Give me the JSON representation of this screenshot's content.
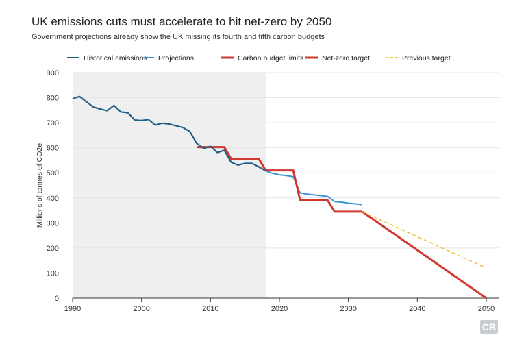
{
  "chart_data": {
    "type": "line",
    "title": "UK emissions cuts must accelerate to hit net-zero by 2050",
    "subtitle": "Government projections already show the UK missing its fourth and fifth carbon budgets",
    "ylabel": "Millions of tonnes of CO2e",
    "xlabel": "",
    "xlim": [
      1990,
      2050
    ],
    "ylim": [
      0,
      900
    ],
    "xticks": [
      1990,
      2000,
      2010,
      2020,
      2030,
      2040,
      2050
    ],
    "yticks": [
      0,
      100,
      200,
      300,
      400,
      500,
      600,
      700,
      800,
      900
    ],
    "shaded_region": [
      1990,
      2018
    ],
    "legend_position": "top",
    "series": [
      {
        "name": "Historical emissions",
        "color": "#1f5f86",
        "style": "solid",
        "x": [
          1990,
          1991,
          1992,
          1993,
          1994,
          1995,
          1996,
          1997,
          1998,
          1999,
          2000,
          2001,
          2002,
          2003,
          2004,
          2005,
          2006,
          2007,
          2008,
          2009,
          2010,
          2011,
          2012,
          2013,
          2014,
          2015,
          2016,
          2017,
          2018
        ],
        "y": [
          796,
          805,
          784,
          763,
          755,
          748,
          769,
          743,
          740,
          711,
          709,
          713,
          691,
          698,
          695,
          688,
          681,
          665,
          618,
          597,
          606,
          581,
          590,
          542,
          531,
          538,
          538,
          524,
          508
        ]
      },
      {
        "name": "Projections",
        "color": "#3a94d6",
        "style": "solid",
        "x": [
          2018,
          2019,
          2020,
          2021,
          2022,
          2023,
          2024,
          2025,
          2026,
          2027,
          2028,
          2029,
          2030,
          2031,
          2032
        ],
        "y": [
          508,
          498,
          492,
          489,
          485,
          420,
          415,
          412,
          409,
          406,
          385,
          383,
          379,
          376,
          373
        ]
      },
      {
        "name": "Carbon budget limits",
        "color": "#d0372e",
        "style": "solid",
        "x": [
          2008,
          2012,
          2013,
          2017,
          2018,
          2022,
          2023,
          2027,
          2028,
          2032
        ],
        "y": [
          603,
          603,
          556,
          556,
          510,
          510,
          390,
          390,
          345,
          345
        ]
      },
      {
        "name": "Net-zero target",
        "color": "#d0372e",
        "style": "solid",
        "x": [
          2032,
          2050
        ],
        "y": [
          345,
          0
        ]
      },
      {
        "name": "Previous target",
        "color": "#f2c12e",
        "style": "dashed",
        "x": [
          2032,
          2050
        ],
        "y": [
          345,
          120
        ]
      }
    ]
  },
  "logo": "CB"
}
